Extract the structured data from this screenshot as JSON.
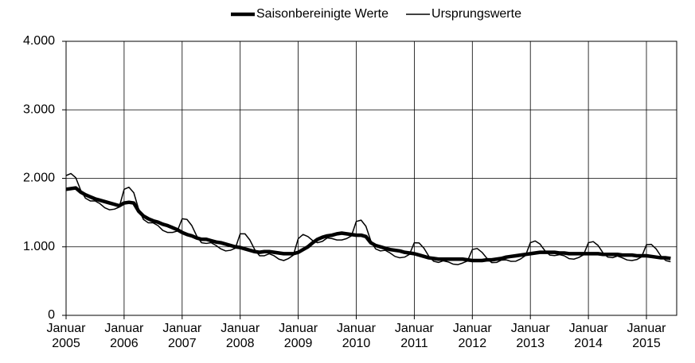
{
  "chart_data": {
    "type": "line",
    "categories": [
      "Januar 2005",
      null,
      null,
      null,
      null,
      null,
      null,
      null,
      null,
      null,
      null,
      null,
      "Januar 2006",
      null,
      null,
      null,
      null,
      null,
      null,
      null,
      null,
      null,
      null,
      null,
      "Januar 2007",
      null,
      null,
      null,
      null,
      null,
      null,
      null,
      null,
      null,
      null,
      null,
      "Januar 2008",
      null,
      null,
      null,
      null,
      null,
      null,
      null,
      null,
      null,
      null,
      null,
      "Januar 2009",
      null,
      null,
      null,
      null,
      null,
      null,
      null,
      null,
      null,
      null,
      null,
      "Januar 2010",
      null,
      null,
      null,
      null,
      null,
      null,
      null,
      null,
      null,
      null,
      null,
      "Januar 2011",
      null,
      null,
      null,
      null,
      null,
      null,
      null,
      null,
      null,
      null,
      null,
      "Januar 2012",
      null,
      null,
      null,
      null,
      null,
      null,
      null,
      null,
      null,
      null,
      null,
      "Januar 2013",
      null,
      null,
      null,
      null,
      null,
      null,
      null,
      null,
      null,
      null,
      null,
      "Januar 2014",
      null,
      null,
      null,
      null,
      null,
      null,
      null,
      null,
      null,
      null,
      null,
      "Januar 2015",
      null,
      null,
      null,
      null,
      null
    ],
    "series": [
      {
        "name": "Saisonbereinigte Werte",
        "color": "#000000",
        "width": 4.5,
        "values": [
          1840,
          1850,
          1860,
          1800,
          1760,
          1730,
          1700,
          1680,
          1660,
          1640,
          1620,
          1600,
          1640,
          1650,
          1640,
          1520,
          1450,
          1410,
          1380,
          1360,
          1330,
          1310,
          1280,
          1250,
          1210,
          1180,
          1160,
          1130,
          1110,
          1110,
          1090,
          1070,
          1060,
          1040,
          1020,
          1000,
          990,
          970,
          950,
          930,
          920,
          930,
          930,
          920,
          910,
          900,
          900,
          900,
          920,
          960,
          1000,
          1060,
          1110,
          1140,
          1160,
          1170,
          1190,
          1200,
          1190,
          1180,
          1170,
          1170,
          1150,
          1060,
          1020,
          1000,
          980,
          960,
          950,
          940,
          920,
          910,
          900,
          880,
          860,
          840,
          830,
          820,
          820,
          820,
          820,
          820,
          820,
          810,
          800,
          800,
          800,
          810,
          810,
          820,
          830,
          850,
          860,
          870,
          880,
          890,
          900,
          910,
          920,
          920,
          920,
          920,
          910,
          910,
          900,
          900,
          900,
          900,
          900,
          900,
          900,
          890,
          890,
          890,
          890,
          880,
          880,
          880,
          870,
          870,
          870,
          860,
          850,
          840,
          840,
          830
        ]
      },
      {
        "name": "Ursprungswerte",
        "color": "#000000",
        "width": 1.5,
        "values": [
          2040,
          2070,
          2010,
          1830,
          1710,
          1670,
          1670,
          1630,
          1570,
          1540,
          1550,
          1580,
          1840,
          1870,
          1790,
          1550,
          1400,
          1350,
          1350,
          1310,
          1240,
          1210,
          1210,
          1230,
          1410,
          1400,
          1310,
          1160,
          1060,
          1050,
          1060,
          1020,
          970,
          940,
          950,
          980,
          1190,
          1190,
          1100,
          960,
          870,
          870,
          900,
          870,
          820,
          800,
          830,
          880,
          1120,
          1180,
          1150,
          1090,
          1060,
          1080,
          1130,
          1120,
          1100,
          1100,
          1120,
          1160,
          1370,
          1390,
          1300,
          1090,
          970,
          940,
          950,
          910,
          860,
          840,
          850,
          890,
          1060,
          1056,
          980,
          864,
          790,
          772,
          796,
          780,
          748,
          740,
          764,
          794,
          960,
          976,
          920,
          834,
          770,
          772,
          806,
          810,
          788,
          790,
          824,
          874,
          1060,
          1086,
          1040,
          944,
          880,
          872,
          886,
          870,
          828,
          820,
          844,
          884,
          1060,
          1076,
          1020,
          914,
          850,
          842,
          866,
          840,
          808,
          800,
          814,
          854,
          1030,
          1036,
          970,
          864,
          800,
          782
        ]
      }
    ],
    "ylim": [
      0,
      4000
    ],
    "yticks": [
      0,
      {
        "value": 1000,
        "label": "1.000"
      },
      {
        "value": 2000,
        "label": "2.000"
      },
      {
        "value": 3000,
        "label": "3.000"
      },
      {
        "value": 4000,
        "label": "4.000"
      }
    ],
    "grid": true,
    "legend": "top"
  }
}
